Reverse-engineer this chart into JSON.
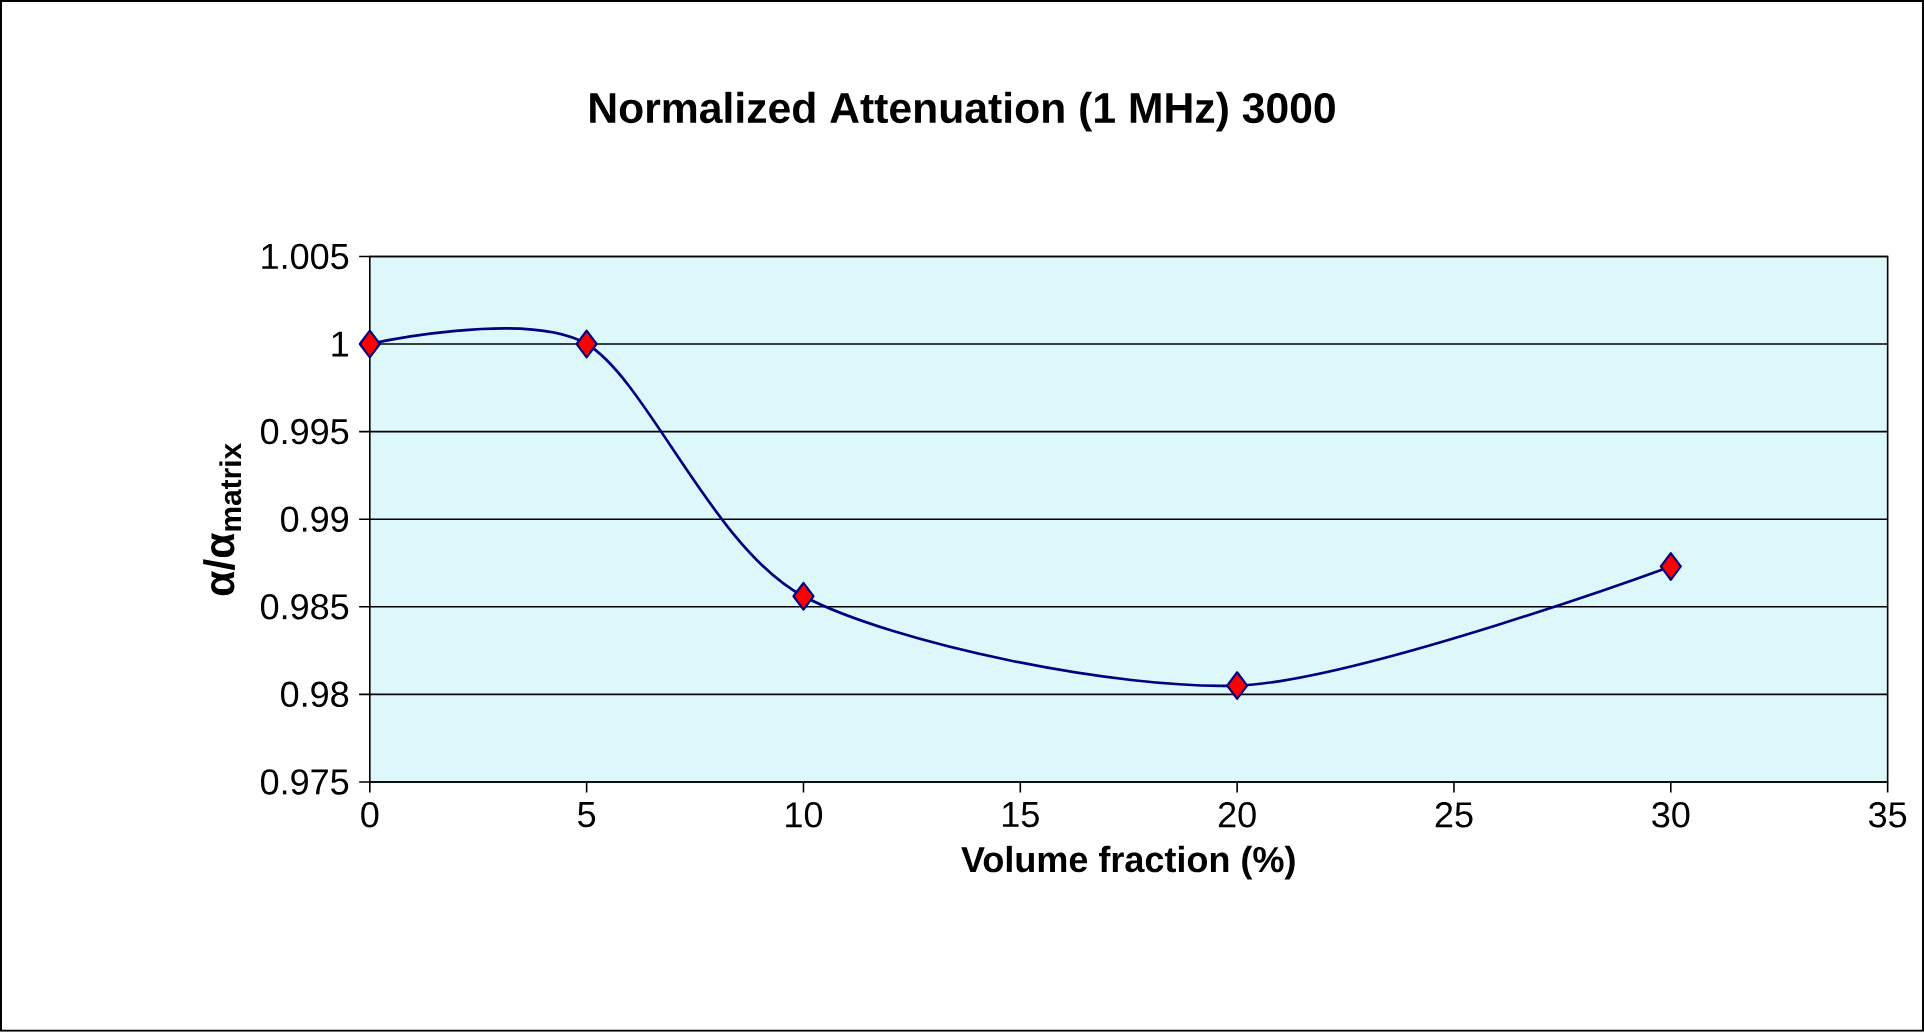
{
  "chart_data": {
    "type": "line",
    "title": "Normalized Attenuation (1 MHz) 3000",
    "xlabel": "Volume fraction (%)",
    "ylabel": "α/α$_{matrix}$",
    "x": [
      0,
      5,
      10,
      20,
      30
    ],
    "series": [
      {
        "color": "#000080",
        "values": [
          1.0,
          1.0,
          0.9856,
          0.9805,
          0.9873
        ]
      }
    ],
    "xlim": [
      0,
      35
    ],
    "xticks": [
      0,
      5,
      10,
      15,
      20,
      25,
      30,
      35
    ],
    "ylim": [
      0.975,
      1.005
    ],
    "yticks": [
      0.975,
      0.98,
      0.985,
      0.99,
      0.995,
      1,
      1.005
    ],
    "grid": "y",
    "legend": false,
    "marker": "diamond",
    "line_style": "solid"
  }
}
